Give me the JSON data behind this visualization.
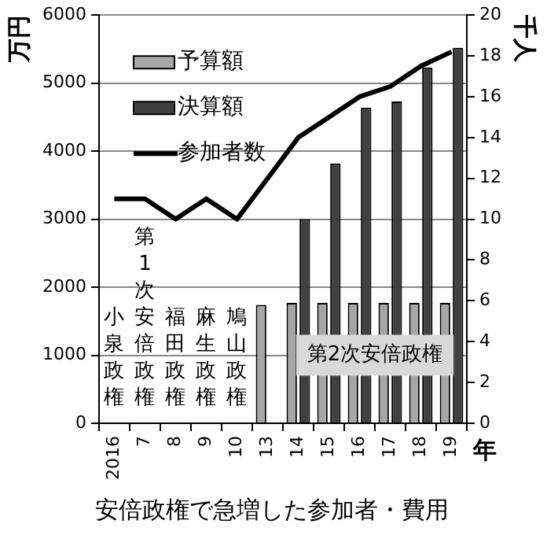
{
  "chart_data": {
    "type": "bar",
    "title": "安倍政権で急増した参加者・費用",
    "xlabel": "年",
    "ylabel": "万円",
    "y2label": "千人",
    "categories": [
      "2016",
      "7",
      "8",
      "9",
      "10",
      "13",
      "14",
      "15",
      "16",
      "17",
      "18",
      "19"
    ],
    "series": [
      {
        "name": "予算額",
        "color": "#a6a6a6",
        "values": [
          null,
          null,
          null,
          null,
          null,
          1740,
          1770,
          1770,
          1770,
          1770,
          1770,
          1770
        ]
      },
      {
        "name": "決算額",
        "color": "#404040",
        "values": [
          null,
          null,
          null,
          null,
          null,
          null,
          3000,
          3820,
          4640,
          4730,
          5230,
          5520
        ]
      },
      {
        "name": "参加者数",
        "type": "line",
        "axis": "y2",
        "color": "#000000",
        "values": [
          11,
          11,
          10,
          11,
          10,
          12,
          14,
          15,
          16,
          16.5,
          17.5,
          18.2
        ]
      }
    ],
    "ylim": [
      0,
      6000
    ],
    "yticks": [
      0,
      1000,
      2000,
      3000,
      4000,
      5000,
      6000
    ],
    "y2lim": [
      0,
      20
    ],
    "y2ticks": [
      0,
      2,
      4,
      6,
      8,
      10,
      12,
      14,
      16,
      18,
      20
    ],
    "grid": "y",
    "legend": "top left",
    "marker": "none",
    "line_style": "solid",
    "annotations": [
      "小泉政権",
      "第1次安倍政権",
      "福田政権",
      "麻生政権",
      "鳩山政権",
      "第2次安倍政権"
    ]
  }
}
